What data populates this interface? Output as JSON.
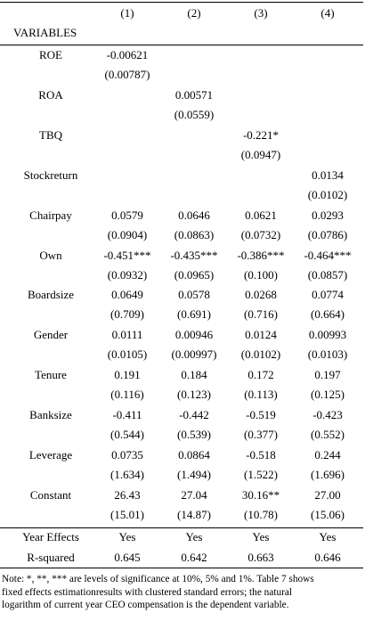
{
  "table": {
    "columns": [
      "(1)",
      "(2)",
      "(3)",
      "(4)"
    ],
    "variables_label": "VARIABLES",
    "rows": [
      {
        "label": "ROE",
        "coef": [
          "-0.00621",
          null,
          null,
          null
        ],
        "se": [
          "(0.00787)",
          null,
          null,
          null
        ]
      },
      {
        "label": "ROA",
        "coef": [
          null,
          "0.00571",
          null,
          null
        ],
        "se": [
          null,
          "(0.0559)",
          null,
          null
        ]
      },
      {
        "label": "TBQ",
        "coef": [
          null,
          null,
          "-0.221*",
          null
        ],
        "se": [
          null,
          null,
          "(0.0947)",
          null
        ]
      },
      {
        "label": "Stockreturn",
        "coef": [
          null,
          null,
          null,
          "0.0134"
        ],
        "se": [
          null,
          null,
          null,
          "(0.0102)"
        ]
      },
      {
        "label": "Chairpay",
        "coef": [
          "0.0579",
          "0.0646",
          "0.0621",
          "0.0293"
        ],
        "se": [
          "(0.0904)",
          "(0.0863)",
          "(0.0732)",
          "(0.0786)"
        ]
      },
      {
        "label": "Own",
        "coef": [
          "-0.451***",
          "-0.435***",
          "-0.386***",
          "-0.464***"
        ],
        "se": [
          "(0.0932)",
          "(0.0965)",
          "(0.100)",
          "(0.0857)"
        ]
      },
      {
        "label": "Boardsize",
        "coef": [
          "0.0649",
          "0.0578",
          "0.0268",
          "0.0774"
        ],
        "se": [
          "(0.709)",
          "(0.691)",
          "(0.716)",
          "(0.664)"
        ]
      },
      {
        "label": "Gender",
        "coef": [
          "0.0111",
          "0.00946",
          "0.0124",
          "0.00993"
        ],
        "se": [
          "(0.0105)",
          "(0.00997)",
          "(0.0102)",
          "(0.0103)"
        ]
      },
      {
        "label": "Tenure",
        "coef": [
          "0.191",
          "0.184",
          "0.172",
          "0.197"
        ],
        "se": [
          "(0.116)",
          "(0.123)",
          "(0.113)",
          "(0.125)"
        ]
      },
      {
        "label": "Banksize",
        "coef": [
          "-0.411",
          "-0.442",
          "-0.519",
          "-0.423"
        ],
        "se": [
          "(0.544)",
          "(0.539)",
          "(0.377)",
          "(0.552)"
        ]
      },
      {
        "label": "Leverage",
        "coef": [
          "0.0735",
          "0.0864",
          "-0.518",
          "0.244"
        ],
        "se": [
          "(1.634)",
          "(1.494)",
          "(1.522)",
          "(1.696)"
        ]
      },
      {
        "label": "Constant",
        "coef": [
          "26.43",
          "27.04",
          "30.16**",
          "27.00"
        ],
        "se": [
          "(15.01)",
          "(14.87)",
          "(10.78)",
          "(15.06)"
        ]
      }
    ],
    "footer_rows": [
      {
        "label": "Year Effects",
        "cells": [
          "Yes",
          "Yes",
          "Yes",
          "Yes"
        ]
      },
      {
        "label": "R-squared",
        "cells": [
          "0.645",
          "0.642",
          "0.663",
          "0.646"
        ]
      }
    ],
    "note": [
      "Note: *, **, *** are levels of significance at 10%, 5% and 1%. Table 7 shows",
      "fixed effects estimationresults with clustered standard errors; the natural",
      "logarithm of current year CEO compensation is the dependent variable."
    ]
  }
}
